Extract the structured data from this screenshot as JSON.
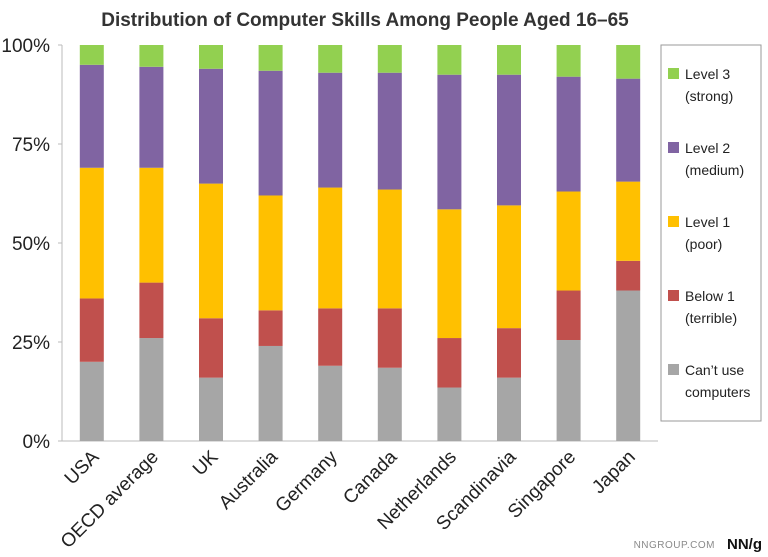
{
  "chart_data": {
    "type": "bar",
    "stacked": true,
    "title": "Distribution of Computer Skills Among People Aged 16–65",
    "xlabel": "",
    "ylabel": "",
    "ylim": [
      0,
      100
    ],
    "yticks": [
      "0%",
      "25%",
      "50%",
      "75%",
      "100%"
    ],
    "categories": [
      "USA",
      "OECD average",
      "UK",
      "Australia",
      "Germany",
      "Canada",
      "Netherlands",
      "Scandinavia",
      "Singapore",
      "Japan"
    ],
    "series": [
      {
        "name": "Can’t use computers",
        "color": "#a6a6a6",
        "values": [
          20,
          26,
          16,
          24,
          19,
          18.5,
          13.5,
          16,
          25.5,
          38
        ]
      },
      {
        "name": "Below 1 (terrible)",
        "color": "#c0504d",
        "values": [
          16,
          14,
          15,
          9,
          14.5,
          15,
          12.5,
          12.5,
          12.5,
          7.5
        ]
      },
      {
        "name": "Level 1 (poor)",
        "color": "#ffc000",
        "values": [
          33,
          29,
          34,
          29,
          30.5,
          30,
          32.5,
          31,
          25,
          20
        ]
      },
      {
        "name": "Level 2 (medium)",
        "color": "#8064a2",
        "values": [
          26,
          25.5,
          29,
          31.5,
          29,
          29.5,
          34,
          33,
          29,
          26
        ]
      },
      {
        "name": "Level 3 (strong)",
        "color": "#92d050",
        "values": [
          5,
          5.5,
          6,
          6.5,
          7,
          7,
          7.5,
          7.5,
          8,
          8.5
        ]
      }
    ],
    "legend": {
      "placement": "right",
      "items": [
        {
          "line1": "Level 3",
          "line2": "(strong)",
          "color": "#92d050"
        },
        {
          "line1": "Level 2",
          "line2": "(medium)",
          "color": "#8064a2"
        },
        {
          "line1": "Level 1",
          "line2": "(poor)",
          "color": "#ffc000"
        },
        {
          "line1": "Below 1",
          "line2": "(terrible)",
          "color": "#c0504d"
        },
        {
          "line1": "Can’t use",
          "line2": "computers",
          "color": "#a6a6a6"
        }
      ]
    },
    "grid": false
  },
  "footer": {
    "source": "NNGROUP.COM",
    "brand": "NN/g"
  }
}
